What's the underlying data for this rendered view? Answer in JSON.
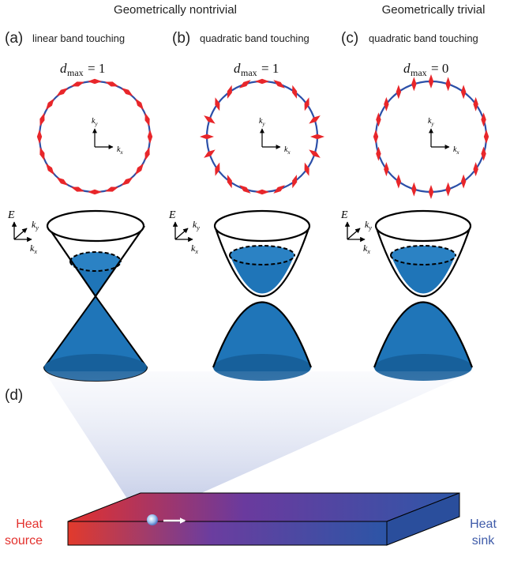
{
  "headers": {
    "nontrivial": "Geometrically nontrivial",
    "trivial": "Geometrically trivial"
  },
  "panels": [
    {
      "letter": "(a)",
      "caption": "linear band touching",
      "dmax_symbol": "d",
      "dmax_sub": "max",
      "dmax_value": "= 1",
      "axis_E": "E",
      "axis_k": "k",
      "sub_x": "x",
      "sub_y": "y"
    },
    {
      "letter": "(b)",
      "caption": "quadratic band touching",
      "dmax_symbol": "d",
      "dmax_sub": "max",
      "dmax_value": "= 1",
      "axis_E": "E",
      "axis_k": "k",
      "sub_x": "x",
      "sub_y": "y"
    },
    {
      "letter": "(c)",
      "caption": "quadratic band touching",
      "dmax_symbol": "d",
      "dmax_sub": "max",
      "dmax_value": "= 0",
      "axis_E": "E",
      "axis_k": "k",
      "sub_x": "x",
      "sub_y": "y"
    }
  ],
  "panel_d": {
    "letter": "(d)",
    "heat_source_line1": "Heat",
    "heat_source_line2": "source",
    "heat_sink_line1": "Heat",
    "heat_sink_line2": "sink"
  },
  "colors": {
    "circle_blue": "#2b4fa8",
    "arrow_red": "#e8262a",
    "band_blue": "#1f75b8",
    "band_blue_dark": "#155d96",
    "heat_red": "#e3312d",
    "heat_blue": "#3a5fae",
    "sink_text": "#3f5ba9"
  }
}
